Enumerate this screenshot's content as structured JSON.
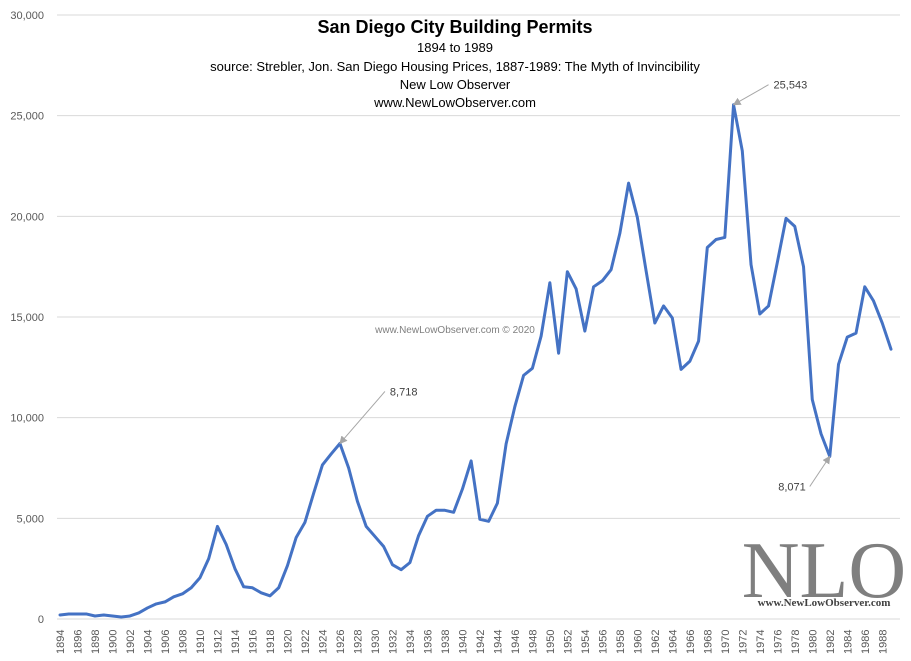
{
  "chart_data": {
    "type": "line",
    "title": "San Diego City Building Permits",
    "subtitles": [
      "1894  to 1989",
      "source: Strebler, Jon. San Diego Housing Prices, 1887-1989: The Myth of Invincibility",
      "New Low Observer",
      "www.NewLowObserver.com"
    ],
    "watermark": "www.NewLowObserver.com © 2020",
    "logo": "NLO",
    "logo_url": "www.NewLowObserver.com",
    "xlabel": "",
    "ylabel": "",
    "ylim": [
      0,
      30000
    ],
    "y_ticks": [
      0,
      5000,
      10000,
      15000,
      20000,
      25000,
      30000
    ],
    "y_tick_labels": [
      "0",
      "5,000",
      "10,000",
      "15,000",
      "20,000",
      "25,000",
      "30,000"
    ],
    "line_color": "#4472c4",
    "x": [
      1894,
      1895,
      1896,
      1897,
      1898,
      1899,
      1900,
      1901,
      1902,
      1903,
      1904,
      1905,
      1906,
      1907,
      1908,
      1909,
      1910,
      1911,
      1912,
      1913,
      1914,
      1915,
      1916,
      1917,
      1918,
      1919,
      1920,
      1921,
      1922,
      1923,
      1924,
      1925,
      1926,
      1927,
      1928,
      1929,
      1930,
      1931,
      1932,
      1933,
      1934,
      1935,
      1936,
      1937,
      1938,
      1939,
      1940,
      1941,
      1942,
      1943,
      1944,
      1945,
      1946,
      1947,
      1948,
      1949,
      1950,
      1951,
      1952,
      1953,
      1954,
      1955,
      1956,
      1957,
      1958,
      1959,
      1960,
      1961,
      1962,
      1963,
      1964,
      1965,
      1966,
      1967,
      1968,
      1969,
      1970,
      1971,
      1972,
      1973,
      1974,
      1975,
      1976,
      1977,
      1978,
      1979,
      1980,
      1981,
      1982,
      1983,
      1984,
      1985,
      1986,
      1987,
      1988,
      1989
    ],
    "x_tick_labels": [
      "1894",
      "1896",
      "1898",
      "1900",
      "1902",
      "1904",
      "1906",
      "1908",
      "1910",
      "1912",
      "1914",
      "1916",
      "1918",
      "1920",
      "1922",
      "1924",
      "1926",
      "1928",
      "1930",
      "1932",
      "1934",
      "1936",
      "1938",
      "1940",
      "1942",
      "1944",
      "1946",
      "1948",
      "1950",
      "1952",
      "1954",
      "1956",
      "1958",
      "1960",
      "1962",
      "1964",
      "1966",
      "1968",
      "1970",
      "1972",
      "1974",
      "1976",
      "1978",
      "1980",
      "1982",
      "1984",
      "1986",
      "1988"
    ],
    "values": [
      200,
      250,
      250,
      250,
      150,
      200,
      150,
      100,
      150,
      300,
      550,
      750,
      850,
      1100,
      1250,
      1550,
      2050,
      3000,
      4600,
      3700,
      2500,
      1600,
      1550,
      1300,
      1150,
      1550,
      2650,
      4050,
      4800,
      6250,
      7650,
      8200,
      8718,
      7500,
      5850,
      4600,
      4100,
      3600,
      2700,
      2450,
      2800,
      4150,
      5100,
      5400,
      5400,
      5300,
      6450,
      7850,
      4950,
      4850,
      5750,
      8700,
      10550,
      12100,
      12450,
      14050,
      16700,
      13200,
      17250,
      16400,
      14300,
      16500,
      16800,
      17350,
      19150,
      21650,
      19950,
      17300,
      14700,
      15550,
      14950,
      12400,
      12800,
      13800,
      18450,
      18850,
      18950,
      25543,
      23250,
      17600,
      15150,
      15550,
      17700,
      19900,
      19500,
      17500,
      10900,
      9200,
      8071,
      12650,
      14000,
      14200,
      16500,
      15800,
      14700,
      13400
    ],
    "annotations": [
      {
        "year": 1926,
        "value": 8718,
        "label": "8,718"
      },
      {
        "year": 1971,
        "value": 25543,
        "label": "25,543"
      },
      {
        "year": 1982,
        "value": 8071,
        "label": "8,071"
      }
    ]
  }
}
